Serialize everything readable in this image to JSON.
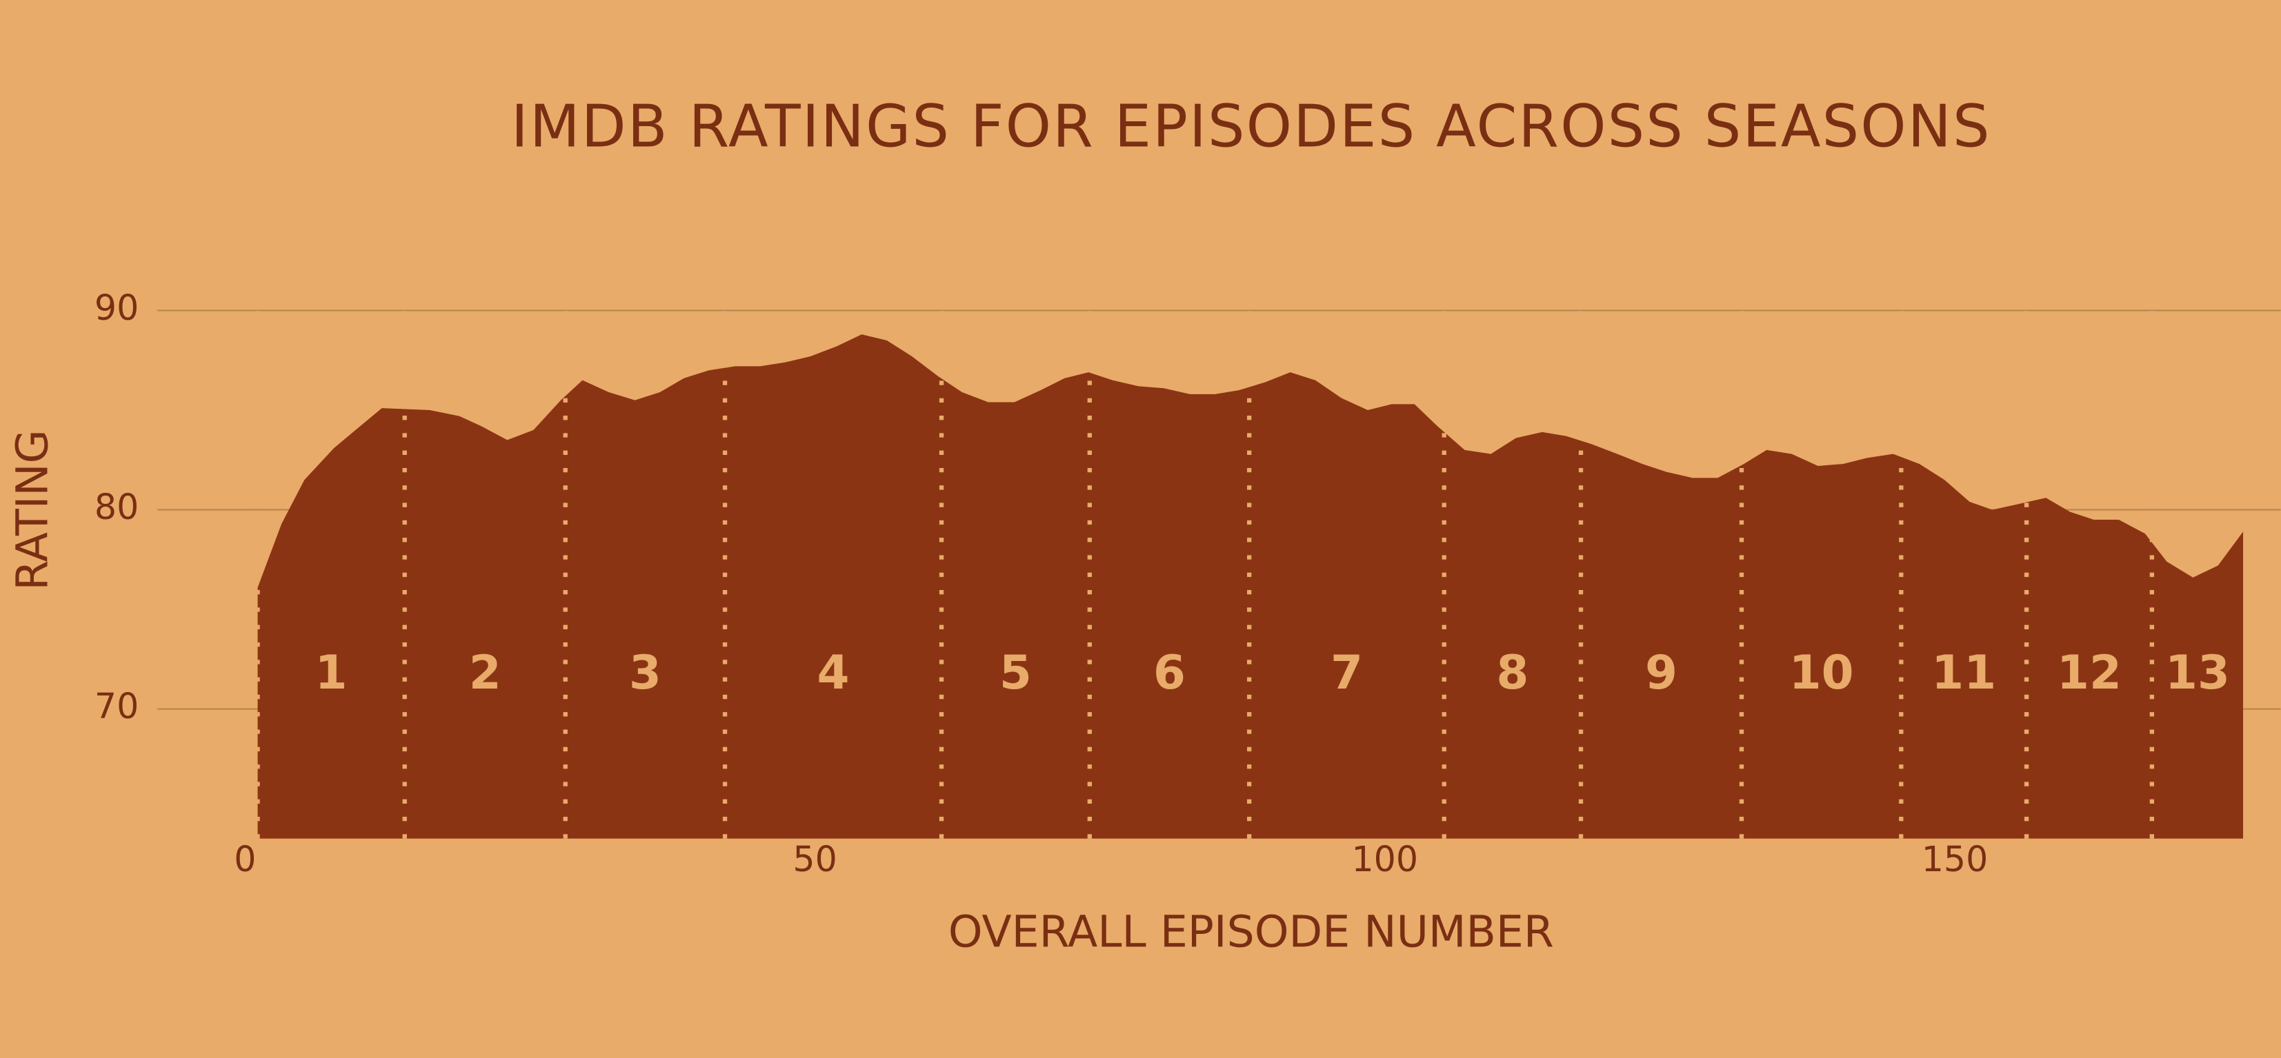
{
  "chart_data": {
    "type": "area",
    "title": "IMDB RATINGS FOR EPISODES ACROSS SEASONS",
    "x_label": "OVERALL EPISODE NUMBER",
    "y_label": "RATING",
    "x": [
      1.1,
      3.2,
      5.2,
      7.8,
      12.0,
      16.2,
      18.8,
      20.7,
      23.0,
      25.3,
      27.7,
      29.6,
      31.9,
      34.2,
      36.4,
      38.5,
      40.7,
      43.0,
      45.2,
      47.4,
      49.6,
      51.9,
      54.1,
      56.3,
      58.5,
      60.8,
      62.9,
      65.2,
      67.5,
      69.8,
      71.9,
      74.0,
      76.1,
      78.4,
      80.6,
      82.9,
      85.1,
      87.2,
      89.5,
      91.7,
      93.9,
      96.2,
      98.5,
      100.6,
      102.6,
      104.6,
      107.0,
      109.3,
      111.5,
      113.8,
      115.9,
      118.1,
      120.4,
      122.6,
      124.7,
      127.0,
      129.2,
      131.5,
      133.5,
      135.7,
      138.0,
      140.2,
      142.3,
      144.6,
      146.9,
      149.1,
      151.3,
      153.3,
      155.7,
      158.0,
      160.1,
      162.2,
      164.4,
      166.7,
      168.6,
      170.9,
      173.1,
      175.3
    ],
    "values": [
      76.1,
      79.3,
      81.5,
      83.1,
      85.1,
      85.0,
      84.7,
      84.2,
      83.5,
      84.0,
      85.5,
      86.5,
      85.9,
      85.5,
      85.9,
      86.6,
      87.0,
      87.2,
      87.2,
      87.4,
      87.7,
      88.2,
      88.8,
      88.5,
      87.7,
      86.7,
      85.9,
      85.4,
      85.4,
      86.0,
      86.6,
      86.9,
      86.5,
      86.2,
      86.1,
      85.8,
      85.8,
      86.0,
      86.4,
      86.9,
      86.5,
      85.6,
      85.0,
      85.3,
      85.3,
      84.2,
      83.0,
      82.8,
      83.6,
      83.9,
      83.7,
      83.3,
      82.8,
      82.3,
      81.9,
      81.6,
      81.6,
      82.3,
      83.0,
      82.8,
      82.2,
      82.3,
      82.6,
      82.8,
      82.3,
      81.5,
      80.4,
      80.0,
      80.3,
      80.6,
      79.9,
      79.5,
      79.5,
      78.8,
      77.4,
      76.6,
      77.2,
      78.9
    ],
    "color": "#8b3414",
    "xlim": [
      -7.7,
      178.6
    ],
    "ylim": [
      63.5,
      96.1
    ],
    "xticks": [
      0,
      50,
      100,
      150
    ],
    "yticks": [
      70,
      80,
      90
    ],
    "grid": true,
    "seasons": {
      "labels": [
        "1",
        "2",
        "3",
        "4",
        "5",
        "6",
        "7",
        "8",
        "9",
        "10",
        "11",
        "12",
        "13"
      ],
      "starts": [
        1.1,
        14.0,
        28.1,
        42.1,
        61.1,
        74.1,
        88.1,
        105.2,
        117.2,
        131.3,
        145.3,
        156.3,
        167.3
      ]
    }
  }
}
